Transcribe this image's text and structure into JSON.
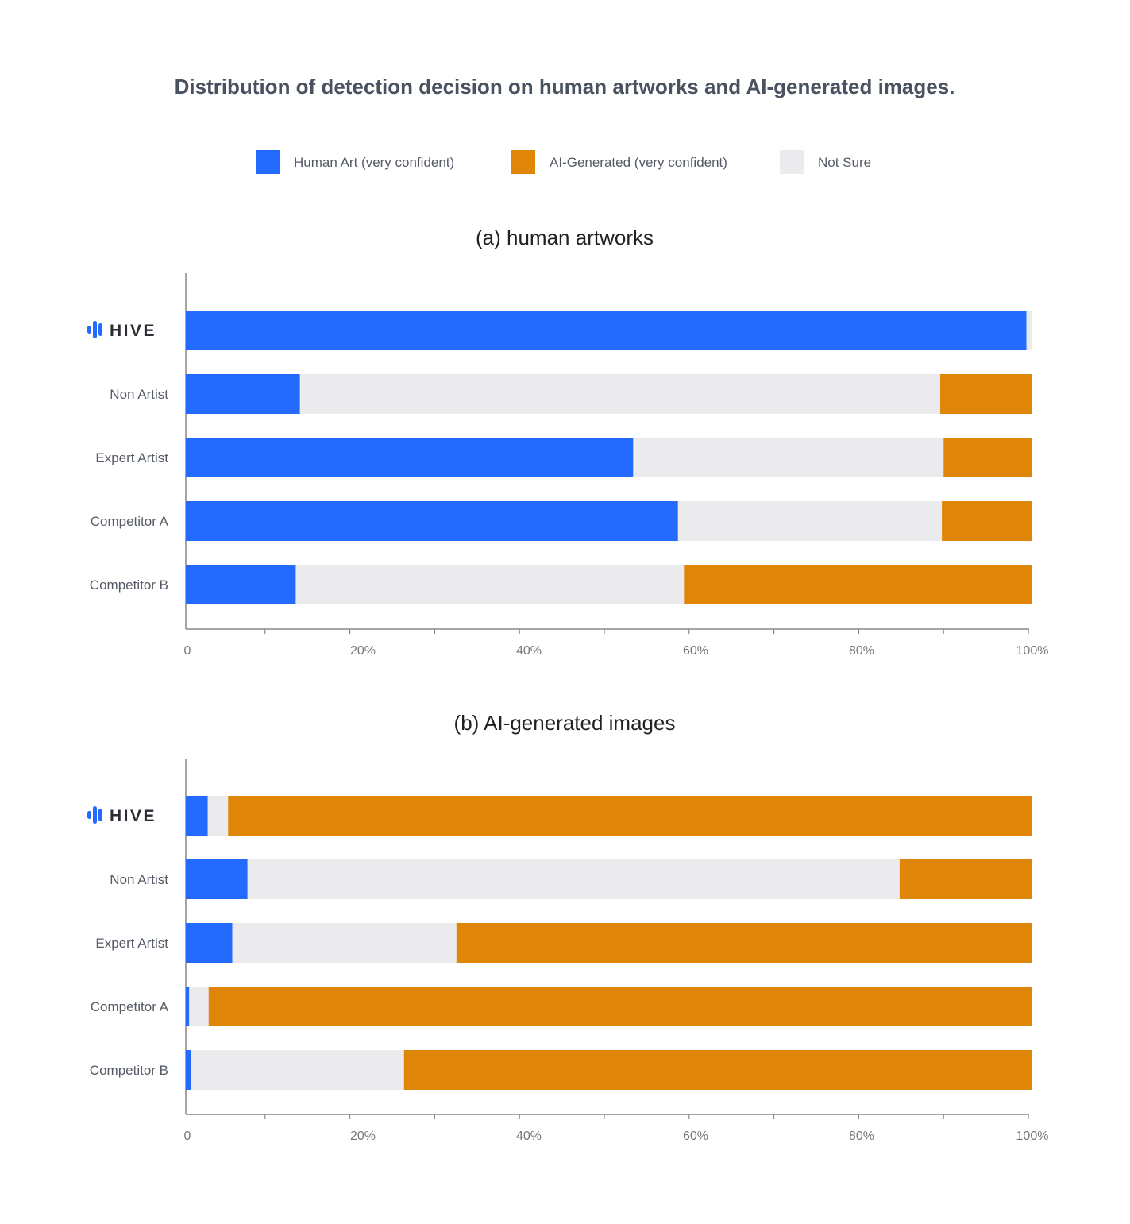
{
  "title": "Distribution of detection decision on human artworks and AI-generated images.",
  "legend": [
    {
      "label": "Human Art (very confident)",
      "color": "#246bfd"
    },
    {
      "label": "AI-Generated (very confident)",
      "color": "#df8508"
    },
    {
      "label": "Not Sure",
      "color": "#ebebee"
    }
  ],
  "chart_data": [
    {
      "type": "bar",
      "orientation": "horizontal",
      "stacked": true,
      "title": "(a) human artworks",
      "categories": [
        "HIVE",
        "Non Artist",
        "Expert Artist",
        "Competitor A",
        "Competitor B"
      ],
      "series": [
        {
          "name": "Human Art (very confident)",
          "color": "#246bfd",
          "values": [
            99.4,
            13.5,
            52.9,
            58.2,
            13.0
          ]
        },
        {
          "name": "Not Sure",
          "color": "#ebebee",
          "values": [
            0.6,
            75.7,
            36.7,
            31.2,
            45.9
          ]
        },
        {
          "name": "AI-Generated (very confident)",
          "color": "#df8508",
          "values": [
            0,
            10.8,
            10.4,
            10.6,
            41.1
          ]
        }
      ],
      "xlim": [
        0,
        100
      ],
      "xticks": [
        "0",
        "20%",
        "40%",
        "60%",
        "80%",
        "100%"
      ],
      "grid": false
    },
    {
      "type": "bar",
      "orientation": "horizontal",
      "stacked": true,
      "title": "(b) AI-generated images",
      "categories": [
        "HIVE",
        "Non Artist",
        "Expert Artist",
        "Competitor A",
        "Competitor B"
      ],
      "series": [
        {
          "name": "Human Art (very confident)",
          "color": "#246bfd",
          "values": [
            2.6,
            7.3,
            5.5,
            0.4,
            0.6
          ]
        },
        {
          "name": "Not Sure",
          "color": "#ebebee",
          "values": [
            2.4,
            77.1,
            26.5,
            2.3,
            25.2
          ]
        },
        {
          "name": "AI-Generated (very confident)",
          "color": "#df8508",
          "values": [
            95.0,
            15.6,
            68.0,
            97.3,
            74.2
          ]
        }
      ],
      "xlim": [
        0,
        100
      ],
      "xticks": [
        "0",
        "20%",
        "40%",
        "60%",
        "80%",
        "100%"
      ],
      "grid": false
    }
  ]
}
